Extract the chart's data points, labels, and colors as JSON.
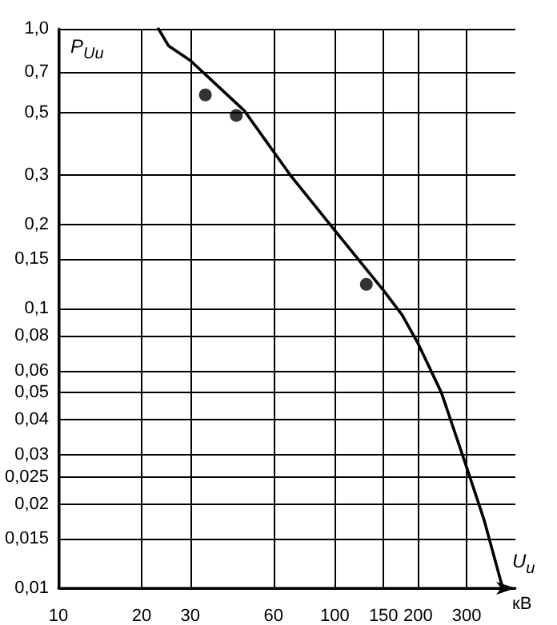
{
  "chart_data": {
    "type": "line",
    "xlabel": "U$_{и}$",
    "ylabel": "P$_{Uи}$",
    "annotations": [
      "кВ"
    ],
    "log": "xy",
    "grid": true,
    "xlim": [
      10,
      450
    ],
    "xticks": [
      10,
      20,
      30,
      60,
      100,
      150,
      200,
      300
    ],
    "ylim": [
      0.01,
      1
    ],
    "yticks": [
      {
        "value": 0.01,
        "label": "0,01"
      },
      {
        "value": 0.015,
        "label": "0,015"
      },
      {
        "value": 0.02,
        "label": "0,02"
      },
      {
        "value": 0.025,
        "label": "0,025"
      },
      {
        "value": 0.03,
        "label": "0,03"
      },
      {
        "value": 0.04,
        "label": "0,04"
      },
      {
        "value": 0.05,
        "label": "0,05"
      },
      {
        "value": 0.06,
        "label": "0,06"
      },
      {
        "value": 0.08,
        "label": "0,08"
      },
      {
        "value": 0.1,
        "label": "0,1"
      },
      {
        "value": 0.15,
        "label": "0,15"
      },
      {
        "value": 0.2,
        "label": "0,2"
      },
      {
        "value": 0.3,
        "label": "0,3"
      },
      {
        "value": 0.5,
        "label": "0,5"
      },
      {
        "value": 0.7,
        "label": "0,7"
      },
      {
        "value": 1,
        "label": "1,0"
      }
    ],
    "series": [
      {
        "type": "line",
        "color": "#000000",
        "marker": "none",
        "line_style": "solid",
        "x": [
          23,
          25,
          30,
          47,
          69,
          100,
          150,
          175,
          200,
          243,
          300,
          347,
          405
        ],
        "values": [
          1,
          0.87,
          0.77,
          0.51,
          0.3,
          0.19,
          0.116,
          0.095,
          0.075,
          0.05,
          0.027,
          0.0175,
          0.01
        ]
      },
      {
        "type": "scatter",
        "color": "#000000",
        "marker": "circle",
        "x": [
          34,
          44,
          130
        ],
        "values": [
          0.58,
          0.49,
          0.122
        ]
      }
    ]
  }
}
